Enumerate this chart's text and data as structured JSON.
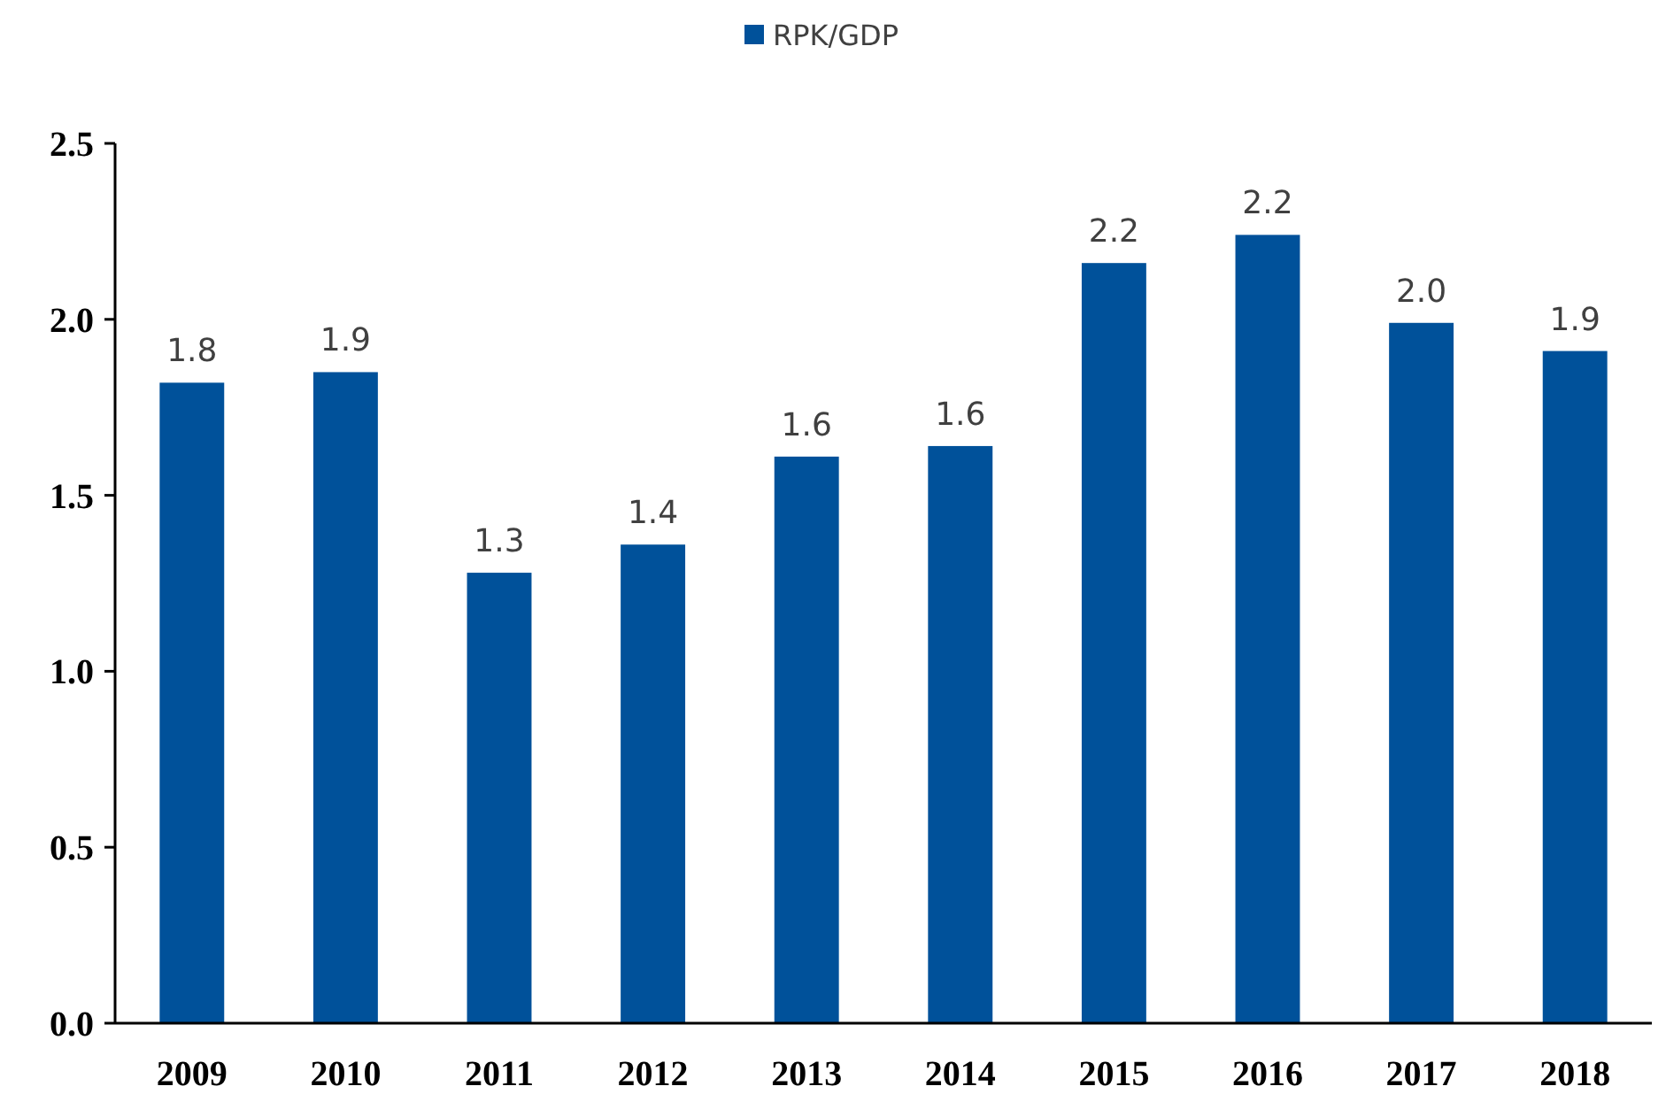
{
  "chart_data": {
    "type": "bar",
    "categories": [
      "2009",
      "2010",
      "2011",
      "2012",
      "2013",
      "2014",
      "2015",
      "2016",
      "2017",
      "2018"
    ],
    "series": [
      {
        "name": "RPK/GDP",
        "color": "#00519a",
        "values": [
          1.82,
          1.85,
          1.28,
          1.36,
          1.61,
          1.64,
          2.16,
          2.24,
          1.99,
          1.91
        ],
        "value_labels": [
          "1.8",
          "1.9",
          "1.3",
          "1.4",
          "1.6",
          "1.6",
          "2.2",
          "2.2",
          "2.0",
          "1.9"
        ]
      }
    ],
    "ylim": [
      0,
      2.5
    ],
    "yticks": [
      {
        "value": 0,
        "label": "0.0"
      },
      {
        "value": 0.5,
        "label": "0.5"
      },
      {
        "value": 1,
        "label": "1.0"
      },
      {
        "value": 1.5,
        "label": "1.5"
      },
      {
        "value": 2,
        "label": "2.0"
      },
      {
        "value": 2.5,
        "label": "2.5"
      }
    ],
    "grid": false,
    "legend": "top"
  }
}
